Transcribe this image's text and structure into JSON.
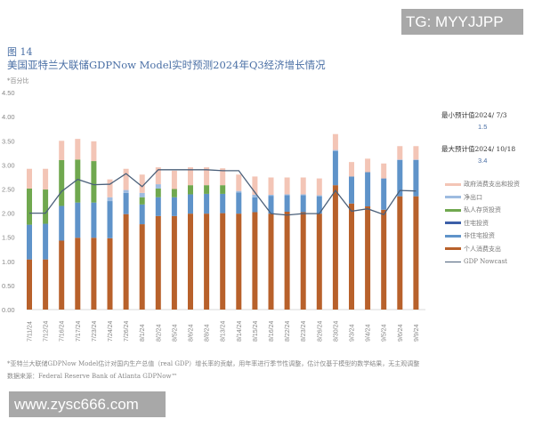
{
  "header": {
    "figure_label": "图 14",
    "title": "美国亚特兰大联储GDPNow Model实时预测2024年Q3经济增长情况",
    "unit": "*百分比"
  },
  "watermarks": {
    "top_right": "TG: MYYJJPP",
    "bottom_left": "www.zysc666.com"
  },
  "annotations": {
    "min_label": "最小预计值2024/ 7/3",
    "min_value": "1.5",
    "max_label": "最大预计值2024/ 10/18",
    "max_value": "3.4"
  },
  "footer": {
    "note": "*亚特兰大联储GDPNow Model估计对国内生产总值（real GDP）增长率的贡献，用年率进行季节性调整，估计仅基于模型的数学结果，无主观调整",
    "source": "数据来源：Federal Reserve Bank of Atlanta GDPNow™"
  },
  "colors": {
    "gov": "#f3c5b6",
    "net_export": "#9dbbe0",
    "inventory": "#70a84f",
    "residential": "#3c5fa8",
    "nonres": "#5f93c9",
    "pce": "#b8612b",
    "nowcast": "#4b607a"
  },
  "chart_data": {
    "type": "bar",
    "stacked": true,
    "title": "美国亚特兰大联储GDPNow Model实时预测2024年Q3经济增长情况",
    "xlabel": "",
    "ylabel": "百分比",
    "ylim": [
      0,
      4.5
    ],
    "yticks": [
      "0.00",
      "0.50",
      "1.00",
      "1.50",
      "2.00",
      "2.50",
      "3.00",
      "3.50",
      "4.00",
      "4.50"
    ],
    "grid": false,
    "legend_position": "right",
    "categories": [
      "7/11/24",
      "7/12/24",
      "7/16/24",
      "7/17/24",
      "7/23/24",
      "7/24/24",
      "7/26/24",
      "8/1/24",
      "8/2/24",
      "8/5/24",
      "8/6/24",
      "8/8/24",
      "8/13/24",
      "8/14/24",
      "8/15/24",
      "8/16/24",
      "8/22/24",
      "8/23/24",
      "8/26/24",
      "8/30/24",
      "9/3/24",
      "9/4/24",
      "9/5/24",
      "9/6/24",
      "9/9/24"
    ],
    "series": [
      {
        "name": "个人消费支出",
        "key": "pce",
        "values": [
          1.04,
          1.04,
          1.43,
          1.49,
          1.49,
          1.48,
          1.98,
          1.77,
          1.94,
          1.94,
          1.99,
          1.99,
          2.0,
          1.99,
          2.02,
          1.99,
          2.03,
          2.02,
          1.99,
          2.58,
          2.2,
          2.14,
          2.07,
          2.35,
          2.35
        ]
      },
      {
        "name": "非住宅投资",
        "key": "nonres",
        "values": [
          0.72,
          0.74,
          0.72,
          0.73,
          0.73,
          0.77,
          0.44,
          0.41,
          0.39,
          0.39,
          0.4,
          0.41,
          0.4,
          0.44,
          0.31,
          0.37,
          0.34,
          0.35,
          0.36,
          0.71,
          0.56,
          0.71,
          0.65,
          0.75,
          0.75
        ]
      },
      {
        "name": "住宅投资",
        "key": "residential",
        "values": [
          0,
          0,
          0,
          0,
          0,
          0,
          0,
          0,
          0,
          0,
          0,
          0,
          0,
          0,
          0,
          0,
          0,
          0,
          0,
          0,
          0,
          0,
          0,
          0,
          0
        ]
      },
      {
        "name": "私人存货投资",
        "key": "inventory",
        "values": [
          0.75,
          0.71,
          0.95,
          0.89,
          0.86,
          0,
          0,
          0.15,
          0.18,
          0.17,
          0.19,
          0.18,
          0.18,
          0,
          0,
          0,
          0,
          0,
          0,
          0,
          0,
          0,
          0,
          0,
          0
        ]
      },
      {
        "name": "净出口",
        "key": "net_export",
        "values": [
          0,
          0,
          0,
          0,
          0,
          0.08,
          0.06,
          0.09,
          0.09,
          0,
          0,
          0,
          0,
          0.03,
          0.05,
          0.02,
          0.02,
          0.02,
          0.02,
          0.02,
          0,
          0,
          0,
          0.01,
          0.01
        ]
      },
      {
        "name": "政府消费支出和投资",
        "key": "gov",
        "values": [
          0.41,
          0.43,
          0.4,
          0.43,
          0.41,
          0.37,
          0.44,
          0.38,
          0.35,
          0.38,
          0.37,
          0.37,
          0.35,
          0.34,
          0.38,
          0.36,
          0.35,
          0.35,
          0.35,
          0.33,
          0.3,
          0.28,
          0.31,
          0.28,
          0.28
        ]
      }
    ],
    "line_series": {
      "name": "GDP Nowcast",
      "values": [
        2.0,
        2.0,
        2.45,
        2.7,
        2.59,
        2.6,
        2.82,
        2.55,
        2.9,
        2.9,
        2.9,
        2.9,
        2.88,
        2.88,
        2.43,
        1.99,
        1.96,
        1.99,
        1.99,
        2.47,
        2.04,
        2.09,
        1.97,
        2.47,
        2.46
      ]
    }
  },
  "legend": [
    {
      "label": "政府消费支出和投资",
      "key": "gov",
      "type": "bar"
    },
    {
      "label": "净出口",
      "key": "net_export",
      "type": "bar"
    },
    {
      "label": "私人存货投资",
      "key": "inventory",
      "type": "bar"
    },
    {
      "label": "住宅投资",
      "key": "residential",
      "type": "bar"
    },
    {
      "label": "非住宅投资",
      "key": "nonres",
      "type": "bar"
    },
    {
      "label": "个人消费支出",
      "key": "pce",
      "type": "bar"
    },
    {
      "label": "GDP Nowcast",
      "key": "nowcast",
      "type": "line"
    }
  ]
}
